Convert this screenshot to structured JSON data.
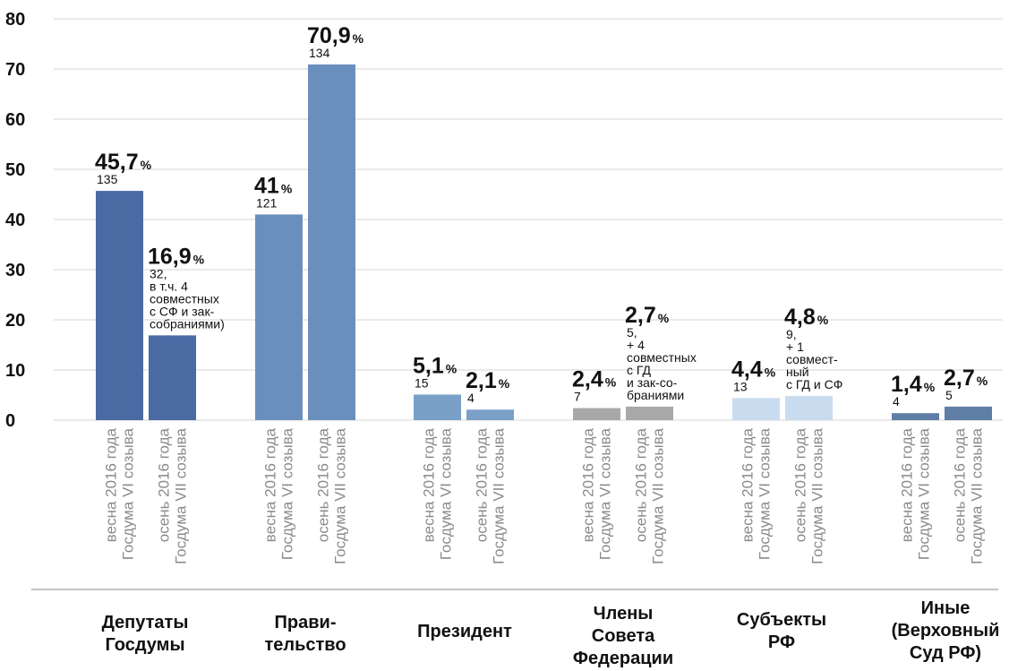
{
  "chart_data": {
    "type": "bar",
    "title": "",
    "xlabel": "",
    "ylabel": "",
    "ylim": [
      0,
      80
    ],
    "yticks": [
      0,
      10,
      20,
      30,
      40,
      50,
      60,
      70,
      80
    ],
    "grid": true,
    "legend": "none",
    "groups": [
      {
        "label": "Депутаты\nГосдумы",
        "bars": [
          {
            "category": [
              "весна 2016 года",
              "Госдума VI созыва"
            ],
            "value": 45.7,
            "pct_label": "45,7",
            "note": [
              "135"
            ],
            "color": "#4a6aa4"
          },
          {
            "category": [
              "осень 2016 года",
              "Госдума VII созыва"
            ],
            "value": 16.9,
            "pct_label": "16,9",
            "note": [
              "32,",
              "в т.ч. 4",
              "совместных",
              "с СФ и зак-",
              "собраниями)"
            ],
            "color": "#4a6aa4"
          }
        ]
      },
      {
        "label": "Прави-\nтельство",
        "bars": [
          {
            "category": [
              "весна 2016 года",
              "Госдума VI созыва"
            ],
            "value": 41,
            "pct_label": "41",
            "note": [
              "121"
            ],
            "color": "#6b8fbd"
          },
          {
            "category": [
              "осень 2016 года",
              "Госдума VII созыва"
            ],
            "value": 70.9,
            "pct_label": "70,9",
            "note": [
              "134"
            ],
            "color": "#6b8fbd"
          }
        ]
      },
      {
        "label": "Президент",
        "bars": [
          {
            "category": [
              "весна 2016 года",
              "Госдума VI созыва"
            ],
            "value": 5.1,
            "pct_label": "5,1",
            "note": [
              "15"
            ],
            "color": "#7aa0c8"
          },
          {
            "category": [
              "осень 2016 года",
              "Госдума VII созыва"
            ],
            "value": 2.1,
            "pct_label": "2,1",
            "note": [
              "4"
            ],
            "color": "#7aa0c8"
          }
        ]
      },
      {
        "label": "Члены\nСовета\nФедерации",
        "bars": [
          {
            "category": [
              "весна 2016 года",
              "Госдума VI созыва"
            ],
            "value": 2.4,
            "pct_label": "2,4",
            "note": [
              "7"
            ],
            "color": "#a8a8a8"
          },
          {
            "category": [
              "осень 2016 года",
              "Госдума VII созыва"
            ],
            "value": 2.7,
            "pct_label": "2,7",
            "note": [
              "5,",
              "+ 4",
              "совместных",
              "с ГД",
              "и зак-со-",
              "браниями"
            ],
            "color": "#a8a8a8"
          }
        ]
      },
      {
        "label": "Субъекты\nРФ",
        "bars": [
          {
            "category": [
              "весна 2016 года",
              "Госдума VI созыва"
            ],
            "value": 4.4,
            "pct_label": "4,4",
            "note": [
              "13"
            ],
            "color": "#c9dcef"
          },
          {
            "category": [
              "осень 2016 года",
              "Госдума VII созыва"
            ],
            "value": 4.8,
            "pct_label": "4,8",
            "note": [
              "9,",
              "+ 1",
              "совмест-",
              "ный",
              "с ГД и СФ"
            ],
            "color": "#c9dcef"
          }
        ]
      },
      {
        "label": "Иные\n(Верховный\nСуд РФ)",
        "bars": [
          {
            "category": [
              "весна 2016 года",
              "Госдума VI созыва"
            ],
            "value": 1.4,
            "pct_label": "1,4",
            "note": [
              "4"
            ],
            "color": "#5f7ea6"
          },
          {
            "category": [
              "осень 2016 года",
              "Госдума VII созыва"
            ],
            "value": 2.7,
            "pct_label": "2,7",
            "note": [
              "5"
            ],
            "color": "#5f7ea6"
          }
        ]
      }
    ],
    "pct_sign": "%"
  },
  "groups_display": [
    {
      "label": "Депутаты\nГосдумы"
    },
    {
      "label": "Прави-\nтельство"
    },
    {
      "label": "Президент"
    },
    {
      "label": "Члены\nСовета\nФедерации"
    },
    {
      "label": "Субъекты\nРФ"
    },
    {
      "label": "Иные\n(Верховный\nСуд РФ)"
    }
  ]
}
